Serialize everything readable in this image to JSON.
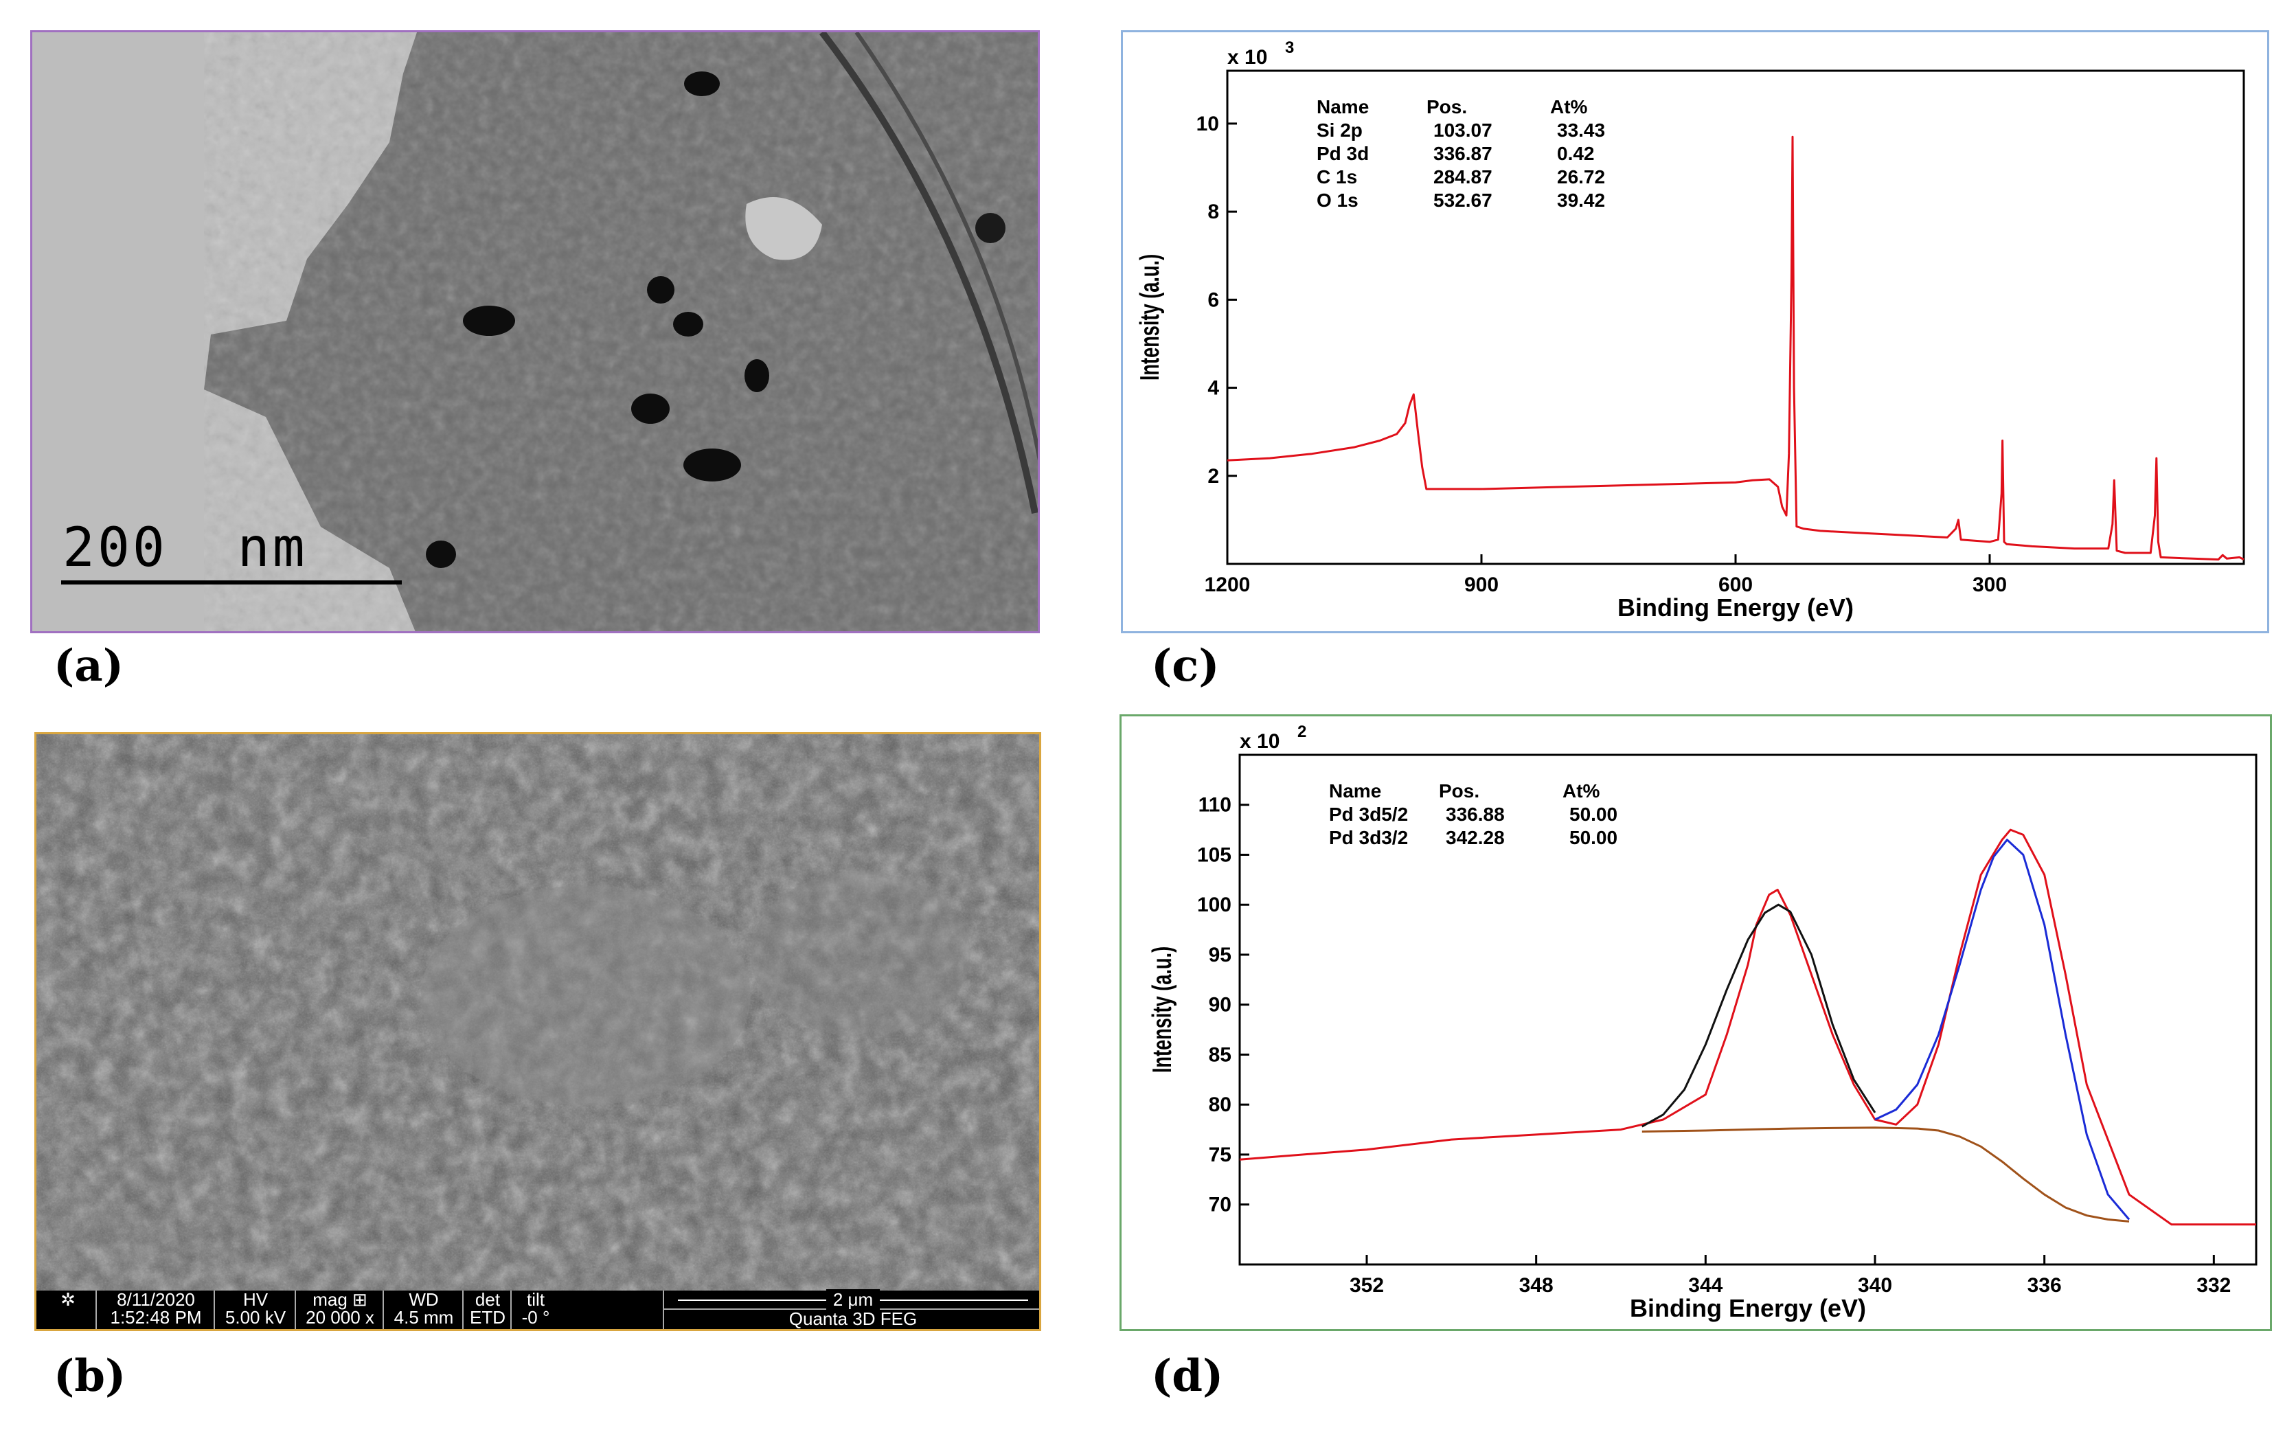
{
  "panels": {
    "a": {
      "label": "(a)",
      "scale_bar": "200  nm"
    },
    "b": {
      "label": "(b)",
      "info_bar": {
        "date": "8/11/2020",
        "time": "1:52:48 PM",
        "hv_label": "HV",
        "hv": "5.00 kV",
        "mag_label": "mag ⊞",
        "mag": "20 000 x",
        "wd_label": "WD",
        "wd": "4.5 mm",
        "det_label": "det",
        "det": "ETD",
        "tilt_label": "tilt",
        "tilt": "-0 °",
        "scale": "2 μm",
        "instrument": "Quanta 3D FEG"
      }
    },
    "c": {
      "label": "(c)"
    },
    "d": {
      "label": "(d)"
    }
  },
  "chart_data": [
    {
      "type": "line",
      "panel": "c",
      "xlabel": "Binding Energy (eV)",
      "ylabel": "Intensity (a.u.)",
      "y_multiplier": "x 10",
      "y_multiplier_exp": "3",
      "xlim": [
        1200,
        0
      ],
      "ylim": [
        0,
        11.2
      ],
      "x_ticks": [
        1200,
        900,
        600,
        300
      ],
      "y_ticks": [
        2,
        4,
        6,
        8,
        10
      ],
      "line_color": "#e0101a",
      "table": {
        "headers": [
          "Name",
          "Pos.",
          "At%"
        ],
        "rows": [
          [
            "Si 2p",
            "103.07",
            "33.43"
          ],
          [
            "Pd 3d",
            "336.87",
            "0.42"
          ],
          [
            "C 1s",
            "284.87",
            "26.72"
          ],
          [
            "O 1s",
            "532.67",
            "39.42"
          ]
        ]
      },
      "series": [
        {
          "x": [
            1200,
            1150,
            1100,
            1050,
            1020,
            1000,
            990,
            985,
            980,
            975,
            970,
            965,
            900,
            800,
            700,
            600,
            580,
            560,
            550,
            545,
            540,
            537,
            534,
            532.7,
            531,
            528,
            520,
            500,
            450,
            400,
            350,
            340,
            337,
            334,
            300,
            290,
            286,
            284.9,
            283,
            280,
            250,
            200,
            160,
            155,
            153,
            150,
            140,
            110,
            105,
            103.1,
            101,
            98,
            60,
            30,
            25,
            20,
            5,
            0
          ],
          "y": [
            2.35,
            2.4,
            2.5,
            2.65,
            2.8,
            2.95,
            3.2,
            3.6,
            3.85,
            3.0,
            2.2,
            1.7,
            1.7,
            1.75,
            1.8,
            1.85,
            1.9,
            1.92,
            1.75,
            1.3,
            1.1,
            2.5,
            6.5,
            9.7,
            4.0,
            0.85,
            0.8,
            0.75,
            0.7,
            0.65,
            0.6,
            0.8,
            1.0,
            0.55,
            0.5,
            0.55,
            1.6,
            2.8,
            0.5,
            0.45,
            0.4,
            0.35,
            0.35,
            0.9,
            1.9,
            0.3,
            0.25,
            0.25,
            1.1,
            2.4,
            0.5,
            0.15,
            0.12,
            0.1,
            0.2,
            0.12,
            0.15,
            0.1
          ]
        }
      ]
    },
    {
      "type": "line",
      "panel": "d",
      "xlabel": "Binding Energy (eV)",
      "ylabel": "Intensity (a.u.)",
      "y_multiplier": "x 10",
      "y_multiplier_exp": "2",
      "xlim": [
        355,
        331
      ],
      "ylim": [
        64,
        115
      ],
      "x_ticks": [
        352,
        348,
        344,
        340,
        336,
        332
      ],
      "y_ticks": [
        70,
        75,
        80,
        85,
        90,
        95,
        100,
        105,
        110
      ],
      "table": {
        "headers": [
          "Name",
          "Pos.",
          "At%"
        ],
        "rows": [
          [
            "Pd 3d5/2",
            "336.88",
            "50.00"
          ],
          [
            "Pd 3d3/2",
            "342.28",
            "50.00"
          ]
        ]
      },
      "series": [
        {
          "color": "#e0101a",
          "x": [
            355,
            352,
            350,
            348,
            346,
            345,
            344,
            343.5,
            343,
            342.8,
            342.5,
            342.3,
            342,
            341.5,
            341,
            340.5,
            340,
            339.5,
            339,
            338.5,
            338,
            337.5,
            337,
            336.8,
            336.5,
            336,
            335.5,
            335,
            334,
            333,
            332,
            331
          ],
          "y": [
            74.5,
            75.5,
            76.5,
            77,
            77.5,
            78.5,
            81,
            87,
            94,
            98,
            101,
            101.5,
            99,
            93,
            87,
            82,
            78.5,
            78,
            80,
            86,
            95,
            103,
            106.5,
            107.5,
            107,
            103,
            93,
            82,
            71,
            68,
            68,
            68
          ]
        },
        {
          "color": "#111111",
          "x": [
            345.5,
            345,
            344.5,
            344,
            343.5,
            343,
            342.6,
            342.28,
            342,
            341.5,
            341,
            340.5,
            340
          ],
          "y": [
            77.8,
            79,
            81.5,
            86,
            91.5,
            96.5,
            99.2,
            100,
            99.3,
            95,
            88,
            82.5,
            79.2
          ]
        },
        {
          "color": "#1a2bd6",
          "x": [
            340,
            339.5,
            339,
            338.5,
            338,
            337.5,
            337.2,
            336.88,
            336.5,
            336,
            335.5,
            335,
            334.5,
            334
          ],
          "y": [
            78.5,
            79.5,
            82,
            87,
            94,
            101.5,
            104.8,
            106.5,
            105,
            98,
            87,
            77,
            71,
            68.5
          ]
        },
        {
          "color": "#a0521a",
          "x": [
            345.5,
            344,
            342,
            340,
            339,
            338.5,
            338,
            337.5,
            337,
            336.5,
            336,
            335.5,
            335,
            334.5,
            334
          ],
          "y": [
            77.3,
            77.4,
            77.6,
            77.7,
            77.6,
            77.4,
            76.8,
            75.8,
            74.3,
            72.6,
            71,
            69.7,
            68.9,
            68.5,
            68.3
          ]
        }
      ]
    }
  ]
}
